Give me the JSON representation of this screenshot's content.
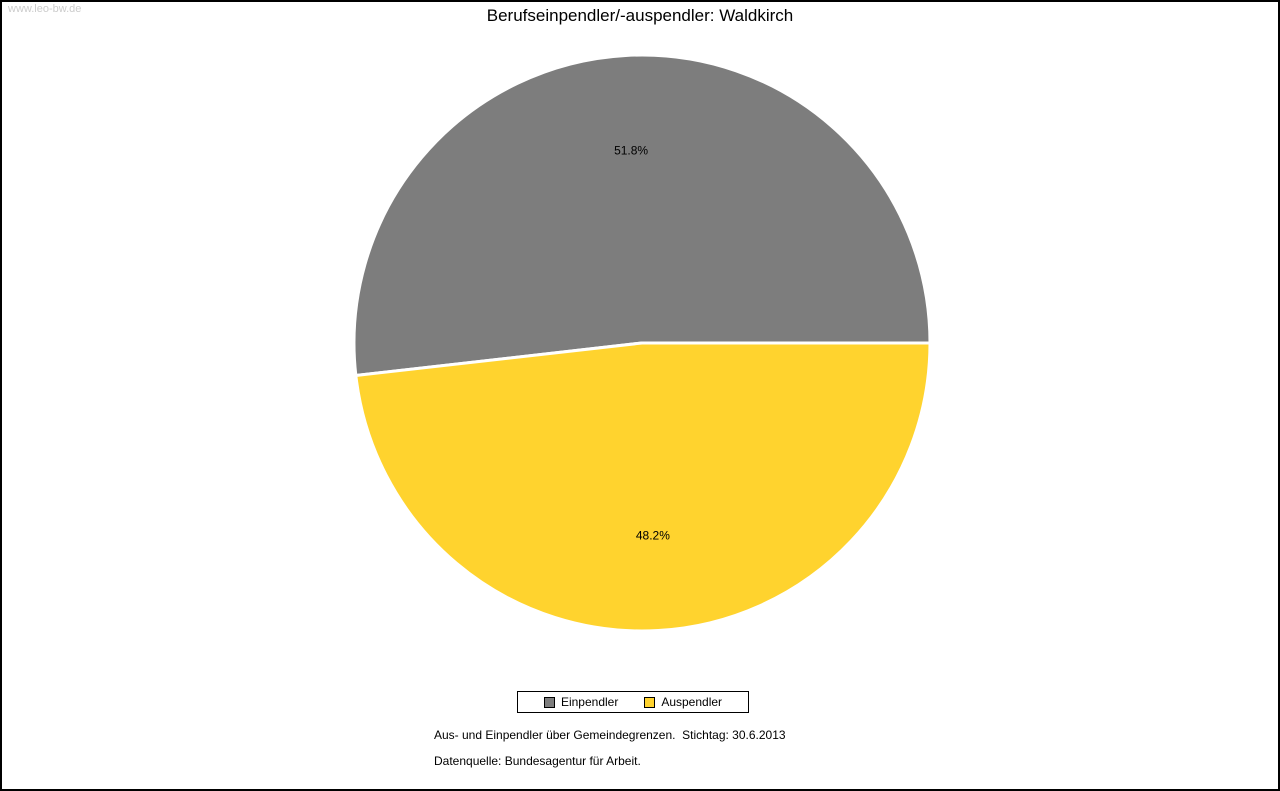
{
  "page": {
    "watermark": "www.leo-bw.de"
  },
  "chart_data": {
    "type": "pie",
    "title": "Berufseinpendler/-auspendler: Waldkirch",
    "slices": [
      {
        "label": "Einpendler",
        "value": 51.8,
        "pct_label": "51.8%",
        "color": "#7d7d7d"
      },
      {
        "label": "Auspendler",
        "value": 48.2,
        "pct_label": "48.2%",
        "color": "#ffd32e"
      }
    ],
    "start_angle_deg": 0,
    "direction": "counterclockwise",
    "legend_position": "bottom",
    "footnotes": [
      "Aus- und Einpendler über Gemeindegrenzen.  Stichtag: 30.6.2013",
      "Datenquelle: Bundesagentur für Arbeit."
    ]
  }
}
